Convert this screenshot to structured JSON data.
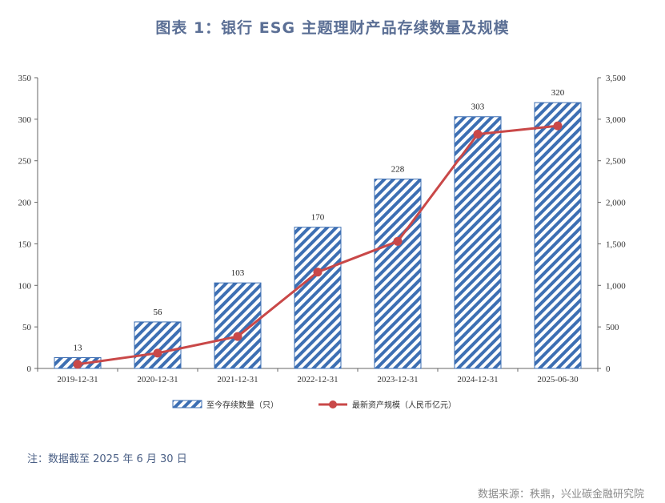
{
  "title": "图表 1：银行 ESG 主题理财产品存续数量及规模",
  "note": "注：数据截至 2025 年 6 月 30 日",
  "source": "数据来源：秩鼎，兴业碳金融研究院",
  "colors": {
    "bar": "#3d6fb3",
    "line": "#c94848",
    "title": "#5b6f95"
  },
  "chart_data": {
    "type": "bar+line",
    "categories": [
      "2019-12-31",
      "2020-12-31",
      "2021-12-31",
      "2022-12-31",
      "2023-12-31",
      "2024-12-31",
      "2025-06-30"
    ],
    "series": [
      {
        "name": "至今存续数量（只）",
        "type": "bar",
        "axis": "left",
        "values": [
          13,
          56,
          103,
          170,
          228,
          303,
          320
        ]
      },
      {
        "name": "最新资产规模（人民币亿元）",
        "type": "line",
        "axis": "right",
        "values": [
          50,
          185,
          385,
          1160,
          1530,
          2820,
          2920
        ]
      }
    ],
    "y_left": {
      "min": 0,
      "max": 350,
      "ticks": [
        "0",
        "50",
        "100",
        "150",
        "200",
        "250",
        "300",
        "350"
      ]
    },
    "y_right": {
      "min": 0,
      "max": 3500,
      "ticks": [
        "0",
        "500",
        "1,000",
        "1,500",
        "2,000",
        "2,500",
        "3,000",
        "3,500"
      ]
    },
    "data_labels": [
      "13",
      "56",
      "103",
      "170",
      "228",
      "303",
      "320"
    ],
    "grid": false,
    "legend_position": "bottom"
  }
}
